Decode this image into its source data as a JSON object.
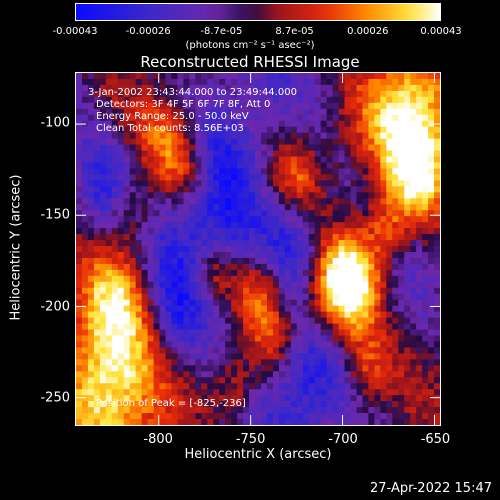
{
  "colorbar": {
    "ticks": [
      "-0.00043",
      "-0.00026",
      "-8.7e-05",
      "8.7e-05",
      "0.00026",
      "0.00043"
    ],
    "unit_label": "(photons cm⁻² s⁻¹ asec⁻²)"
  },
  "info": {
    "line1": "3-Jan-2002 23:43:44.000 to 23:49:44.000",
    "line2": "Detectors: 3F 4F 5F 6F 7F 8F, Att 0",
    "line3": "Energy Range: 25.0 - 50.0 keV",
    "line4": "Clean     Total counts: 8.56E+03",
    "peak": "Position of Peak = [-825,-236]"
  },
  "timestamp": "27-Apr-2022 15:47",
  "chart_data": {
    "type": "heatmap",
    "title": "Reconstructed RHESSI Image",
    "xlabel": "Heliocentric X (arcsec)",
    "ylabel": "Heliocentric Y (arcsec)",
    "xlim": [
      -845,
      -647
    ],
    "ylim": [
      -265,
      -72
    ],
    "xticks": [
      "-800",
      "-750",
      "-700",
      "-650"
    ],
    "yticks": [
      "-100",
      "-150",
      "-200",
      "-250"
    ],
    "colorscale_range": [
      -0.00043,
      0.00043
    ],
    "peak_position": [
      -825,
      -236
    ]
  }
}
